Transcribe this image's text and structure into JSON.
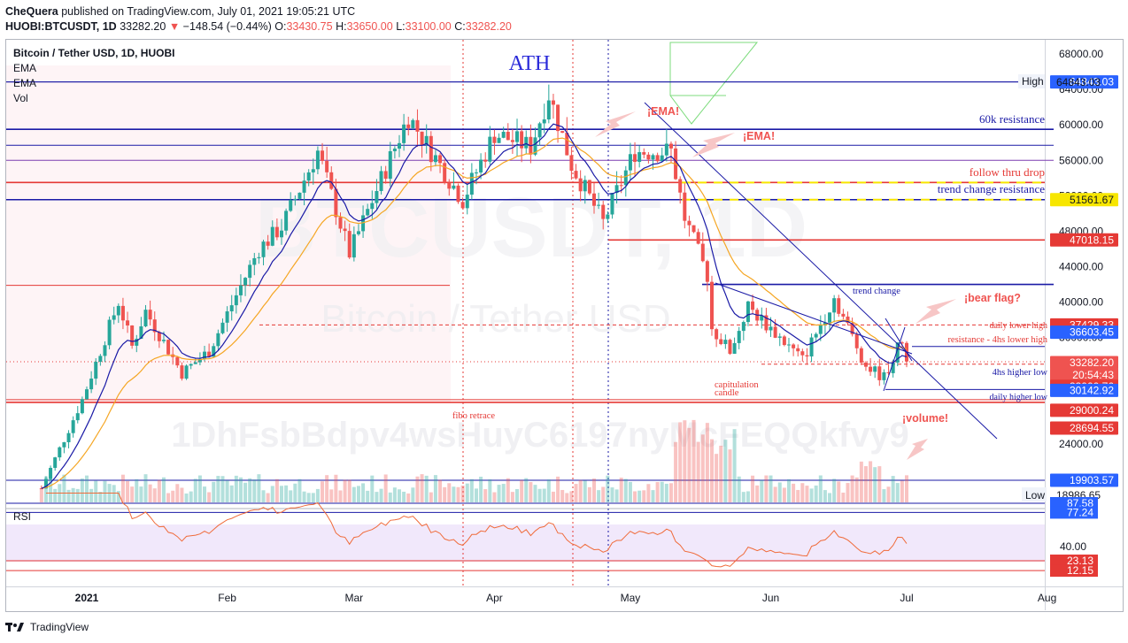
{
  "header": {
    "author": "CheQuera",
    "published_text": "published on TradingView.com, July 01, 2021 19:05:21 UTC",
    "symbol": "HUOBI:BTCUSDT, 1D",
    "last": "33282.20",
    "change": "−148.54 (−0.44%)",
    "o_label": "O:",
    "o": "33430.75",
    "h_label": "H:",
    "h": "33650.00",
    "l_label": "L:",
    "l": "33100.00",
    "c_label": "C:",
    "c": "33282.20"
  },
  "legend": {
    "title": "Bitcoin / Tether USD, 1D, HUOBI",
    "ind1": "EMA",
    "ind2": "EMA",
    "ind3": "Vol",
    "rsi": "RSI"
  },
  "watermark": {
    "symbol": "BTCUSDT, 1D",
    "name": "Bitcoin / Tether USD",
    "address": "1DhFsbBdpv4wsHuyC6197nyMcFEQQkfvy9"
  },
  "footer": {
    "brand": "TradingView"
  },
  "colors": {
    "up": "#26a69a",
    "down": "#ef5350",
    "blue_line": "#1a1aa6",
    "red_line": "#e53935",
    "ema_fast": "#1a1aa6",
    "ema_slow": "#f5a623",
    "yellow": "#f7e600",
    "rsi_line": "#f06b3a"
  },
  "chart_data": {
    "type": "candlestick",
    "symbol": "BTCUSDT",
    "timeframe": "1D",
    "y_range": [
      18000,
      69000
    ],
    "x_range": [
      "2020-12-16",
      "2021-08-05"
    ],
    "x_ticks": [
      "2021",
      "Feb",
      "Mar",
      "Apr",
      "May",
      "Jun",
      "Jul",
      "Aug"
    ],
    "y_ticks": [
      "24000.00",
      "28000.00",
      "32000.00",
      "36000.00",
      "40000.00",
      "44000.00",
      "48000.00",
      "52000.00",
      "56000.00",
      "60000.00",
      "64000.00",
      "68000.00"
    ],
    "price_anchors": [
      [
        "2020-12-22",
        19000
      ],
      [
        "2020-12-31",
        29000
      ],
      [
        "2021-01-08",
        40000
      ],
      [
        "2021-01-11",
        35000
      ],
      [
        "2021-01-14",
        39000
      ],
      [
        "2021-01-22",
        32000
      ],
      [
        "2021-01-28",
        34500
      ],
      [
        "2021-02-08",
        46000
      ],
      [
        "2021-02-13",
        48500
      ],
      [
        "2021-02-21",
        57000
      ],
      [
        "2021-02-28",
        45500
      ],
      [
        "2021-03-13",
        61000
      ],
      [
        "2021-03-25",
        51500
      ],
      [
        "2021-04-01",
        59000
      ],
      [
        "2021-04-09",
        57500
      ],
      [
        "2021-04-13",
        63500
      ],
      [
        "2021-04-18",
        55500
      ],
      [
        "2021-04-25",
        49000
      ],
      [
        "2021-05-02",
        57000
      ],
      [
        "2021-05-10",
        57000
      ],
      [
        "2021-05-13",
        49500
      ],
      [
        "2021-05-18",
        43000
      ],
      [
        "2021-05-19",
        37000
      ],
      [
        "2021-05-23",
        34500
      ],
      [
        "2021-05-27",
        39500
      ],
      [
        "2021-06-08",
        33500
      ],
      [
        "2021-06-15",
        40500
      ],
      [
        "2021-06-22",
        32800
      ],
      [
        "2021-06-26",
        31500
      ],
      [
        "2021-06-30",
        35800
      ],
      [
        "2021-07-01",
        33282
      ]
    ],
    "lines": {
      "horizontal": [
        {
          "label": "High",
          "value": 64843.03,
          "color": "blue"
        },
        {
          "label": "60k resistance",
          "value": 59500,
          "color": "blue"
        },
        {
          "label": "",
          "value": 57700,
          "color": "blue"
        },
        {
          "label": "",
          "value": 56000,
          "color": "purple"
        },
        {
          "label": "follow thru drop",
          "value": 53500,
          "color": "red"
        },
        {
          "label": "trend change resistance",
          "value": 51561.67,
          "color": "blue"
        },
        {
          "label": "",
          "value": 47018.15,
          "color": "red"
        },
        {
          "label": "trend change",
          "value": 42000,
          "color": "blue"
        },
        {
          "label": "daily lower high",
          "value": 37429.33,
          "color": "red-dashed"
        },
        {
          "label": "resistance - 4hs lower high",
          "value": 35000,
          "color": "blue"
        },
        {
          "label": "4hs higher low",
          "value": 33000.76,
          "color": "red-dashed"
        },
        {
          "label": "daily higher low",
          "value": 30142.92,
          "color": "blue"
        },
        {
          "label": "fibo retrace",
          "value": 29000.24,
          "color": "red"
        },
        {
          "label": "",
          "value": 28694.55,
          "color": "red"
        },
        {
          "label": "",
          "value": 19903.57,
          "color": "blue"
        }
      ]
    },
    "price_axis_labels": [
      {
        "text": "64843.03",
        "bg": "#2962ff"
      },
      {
        "text": "51561.67",
        "bg": "#f7e600"
      },
      {
        "text": "47018.15",
        "bg": "#e53935"
      },
      {
        "text": "37429.33",
        "bg": "#e53935"
      },
      {
        "text": "36603.45",
        "bg": "#2962ff"
      },
      {
        "text": "33282.20",
        "bg": "#ef5350"
      },
      {
        "text": "20:54:43",
        "bg": "#ef5350"
      },
      {
        "text": "33000.76",
        "bg": "#e53935"
      },
      {
        "text": "30142.92",
        "bg": "#2962ff"
      },
      {
        "text": "29000.24",
        "bg": "#e53935"
      },
      {
        "text": "28694.55",
        "bg": "#e53935"
      },
      {
        "text": "19903.57",
        "bg": "#2962ff"
      }
    ],
    "high_label": "High",
    "high_value": "64843.03",
    "low_label": "Low",
    "low_value": "18986.65",
    "rsi": {
      "y_ticks": [
        "40.00"
      ],
      "labels": [
        {
          "text": "87.58",
          "bg": "#2962ff"
        },
        {
          "text": "77.24",
          "bg": "#2962ff"
        },
        {
          "text": "23.13",
          "bg": "#e53935"
        },
        {
          "text": "12.15",
          "bg": "#e53935"
        }
      ]
    },
    "annotations": [
      "ATH",
      "¡EMA!",
      "¡EMA!",
      "60k resistance",
      "follow thru drop",
      "trend change resistance",
      "trend change",
      "¡bear flag?",
      "daily lower high",
      "resistance - 4hs lower high",
      "4hs higher low",
      "daily higher low",
      "capitulation",
      "candle",
      "fibo retrace",
      "¡volume!"
    ]
  }
}
